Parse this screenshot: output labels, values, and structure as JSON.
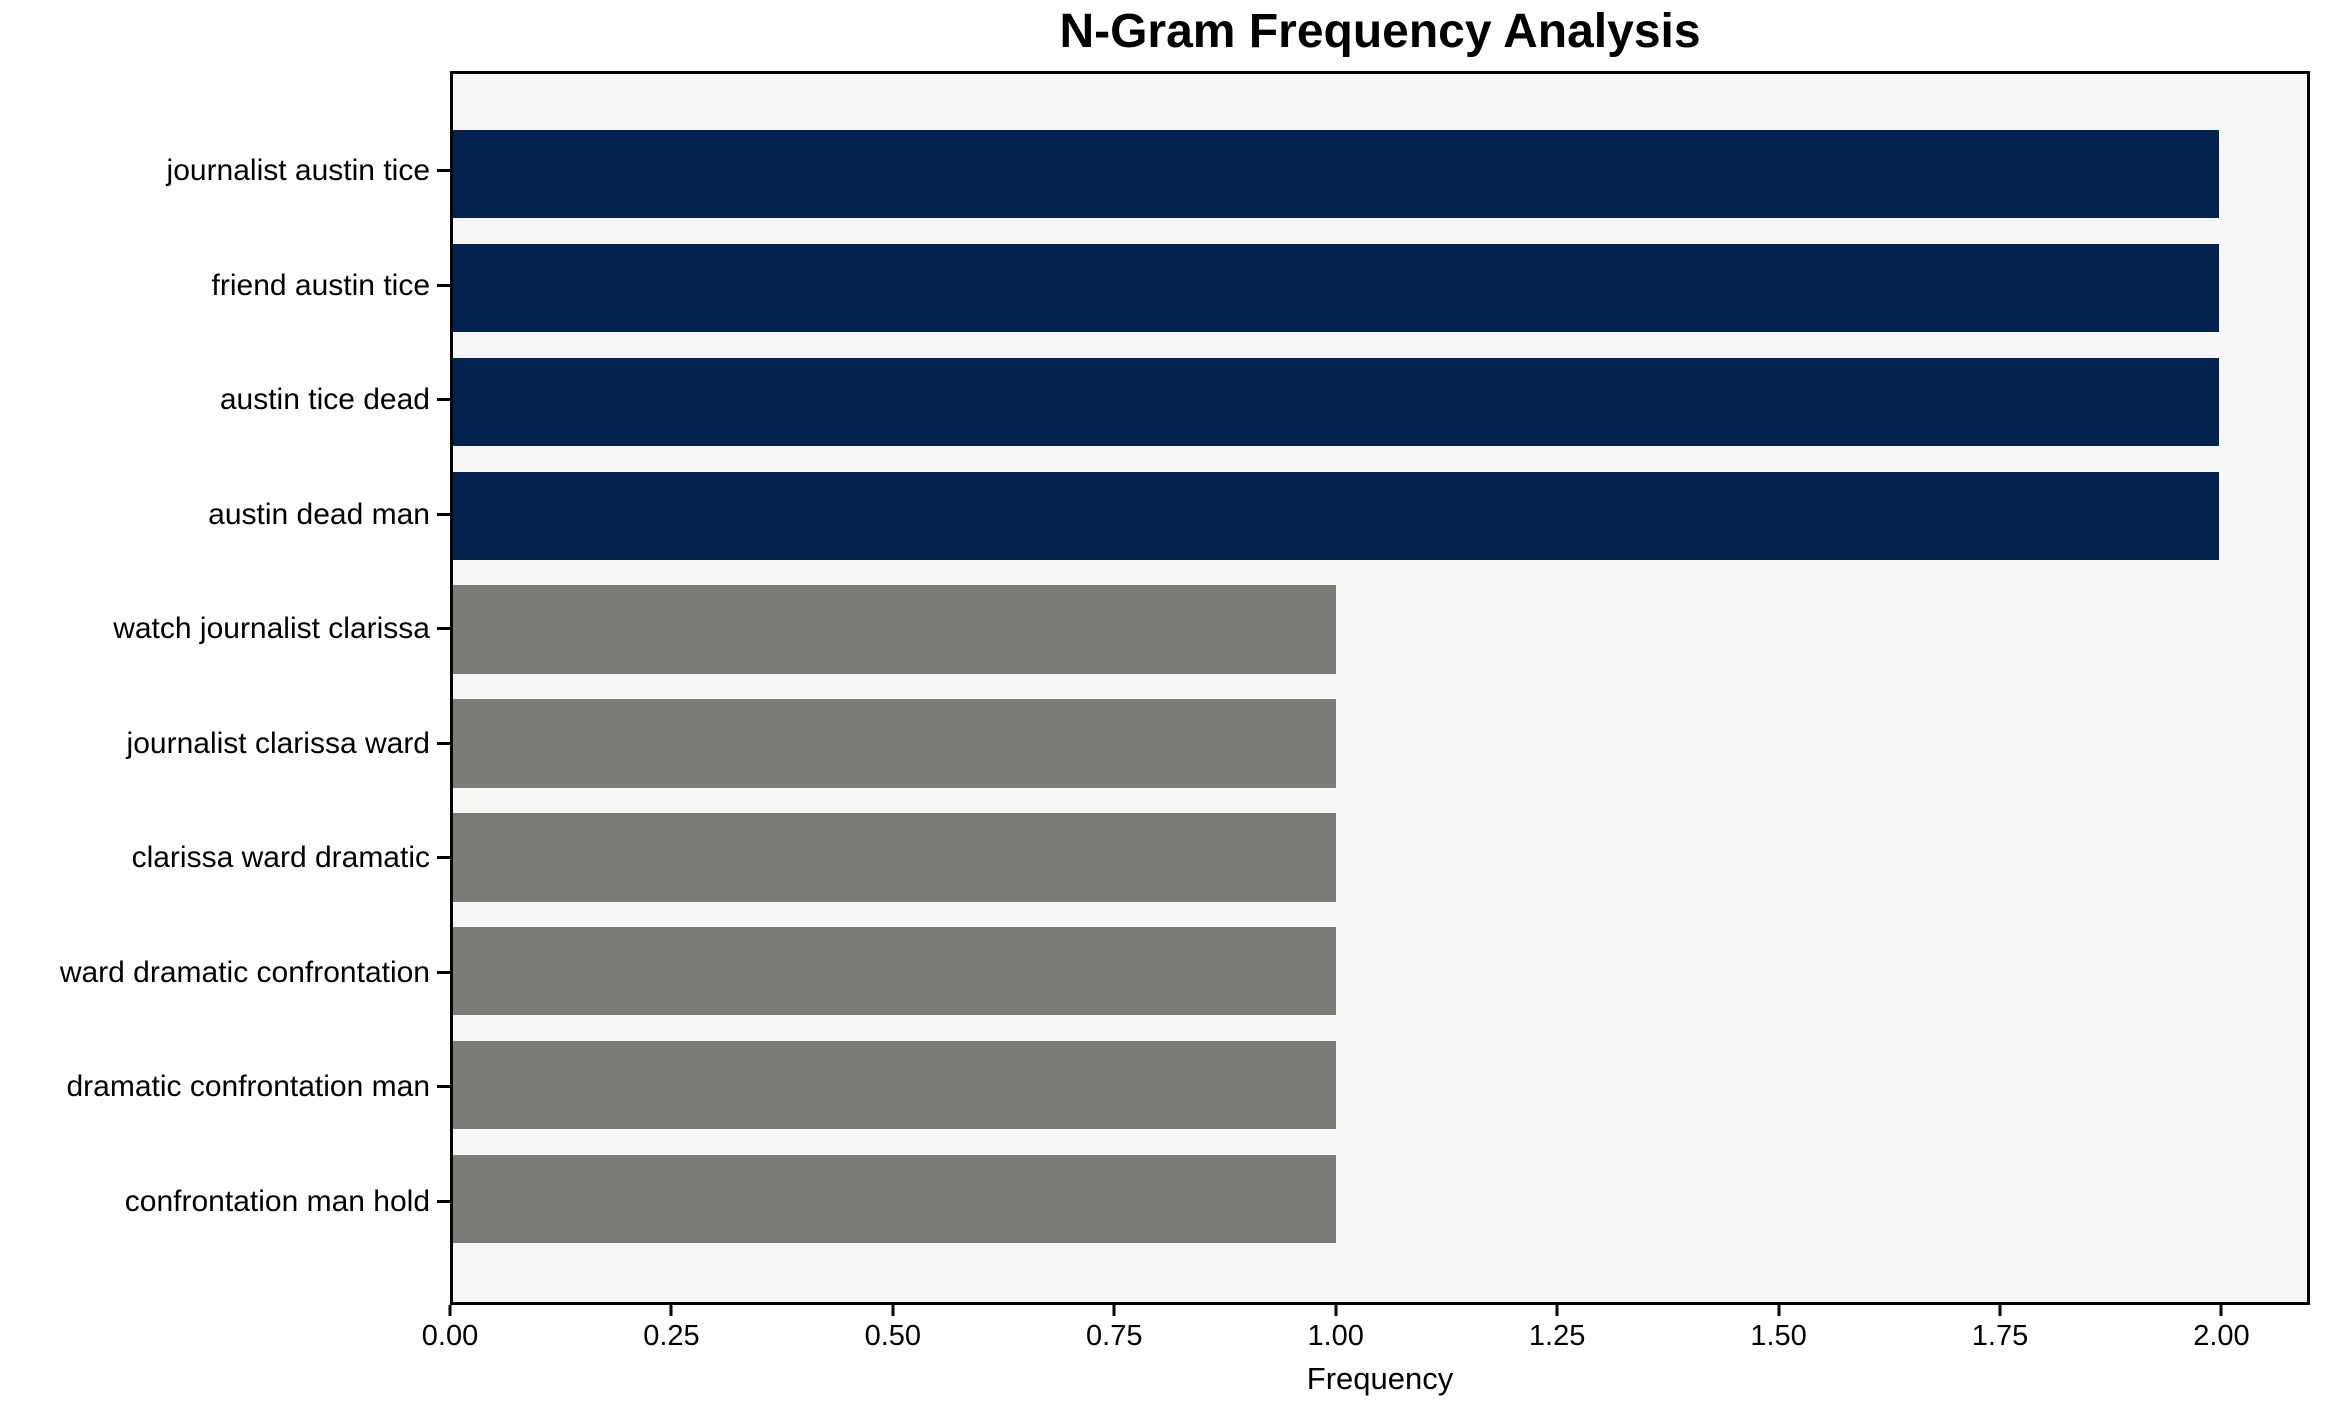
{
  "title": "N-Gram Frequency Analysis",
  "chart_data": {
    "type": "bar",
    "orientation": "horizontal",
    "title": "N-Gram Frequency Analysis",
    "xlabel": "Frequency",
    "ylabel": "",
    "categories": [
      "journalist austin tice",
      "friend austin tice",
      "austin tice dead",
      "austin dead man",
      "watch journalist clarissa",
      "journalist clarissa ward",
      "clarissa ward dramatic",
      "ward dramatic confrontation",
      "dramatic confrontation man",
      "confrontation man hold"
    ],
    "values": [
      2,
      2,
      2,
      2,
      1,
      1,
      1,
      1,
      1,
      1
    ],
    "bar_colors": [
      "#02234D",
      "#02234D",
      "#02234D",
      "#02234D",
      "#7B7B78",
      "#7B7B78",
      "#7B7B78",
      "#7B7B78",
      "#7B7B78",
      "#7B7B78"
    ],
    "xlim": [
      0,
      2.1
    ],
    "xticks": [
      0,
      0.25,
      0.5,
      0.75,
      1.0,
      1.25,
      1.5,
      1.75,
      2.0
    ],
    "xtick_labels": [
      "0.00",
      "0.25",
      "0.50",
      "0.75",
      "1.00",
      "1.25",
      "1.50",
      "1.75",
      "2.00"
    ],
    "grid": false,
    "legend": null,
    "colors": {
      "plot_background": "#F7F7F7",
      "figure_background": "#FFFFFF",
      "bar_high": "#02234D",
      "bar_low": "#7B7B78",
      "axis": "#000000",
      "text": "#000000"
    }
  }
}
